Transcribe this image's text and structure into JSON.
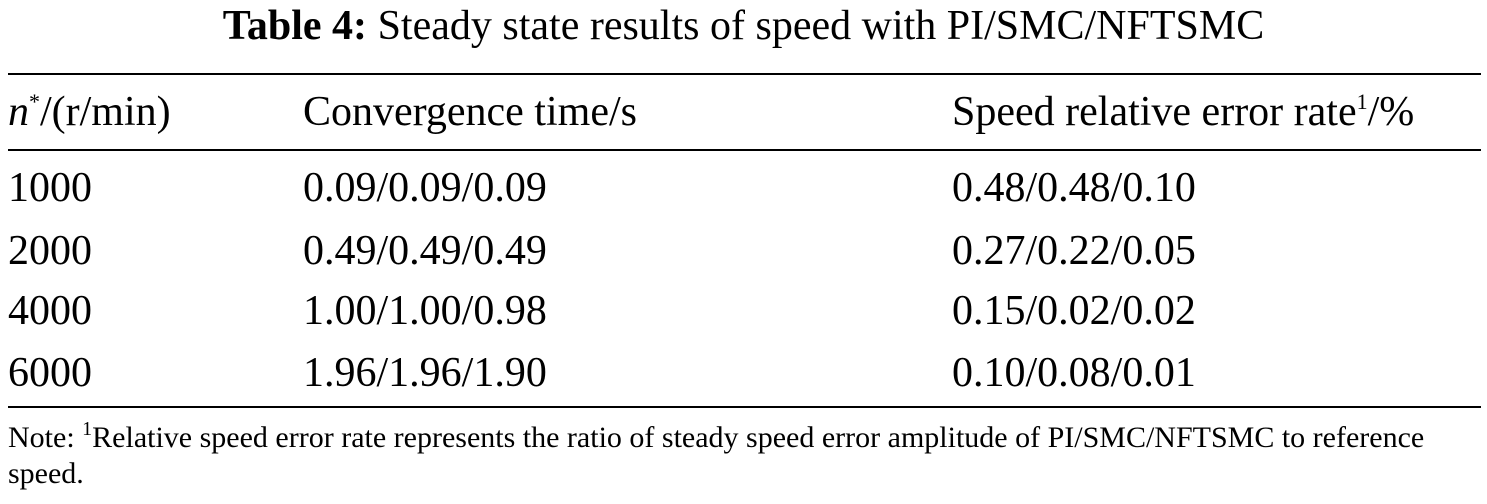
{
  "caption": {
    "label": "Table 4:",
    "text": "Steady state results of speed with PI/SMC/NFTSMC"
  },
  "table": {
    "headers": {
      "col1_var": "n",
      "col1_sup": "*",
      "col1_rest": "/(r/min)",
      "col2": "Convergence time/s",
      "col3_main": "Speed relative error rate",
      "col3_sup": "1",
      "col3_rest": "/%"
    },
    "rows": [
      {
        "speed": "1000",
        "time": "0.09/0.09/0.09",
        "error": "0.48/0.48/0.10"
      },
      {
        "speed": "2000",
        "time": "0.49/0.49/0.49",
        "error": "0.27/0.22/0.05"
      },
      {
        "speed": "4000",
        "time": "1.00/1.00/0.98",
        "error": "0.15/0.02/0.02"
      },
      {
        "speed": "6000",
        "time": "1.96/1.96/1.90",
        "error": "0.10/0.08/0.01"
      }
    ]
  },
  "note": {
    "prefix": "Note:",
    "sup": "1",
    "text": "Relative speed error rate represents the ratio of steady speed error amplitude of PI/SMC/NFTSMC to reference speed."
  }
}
